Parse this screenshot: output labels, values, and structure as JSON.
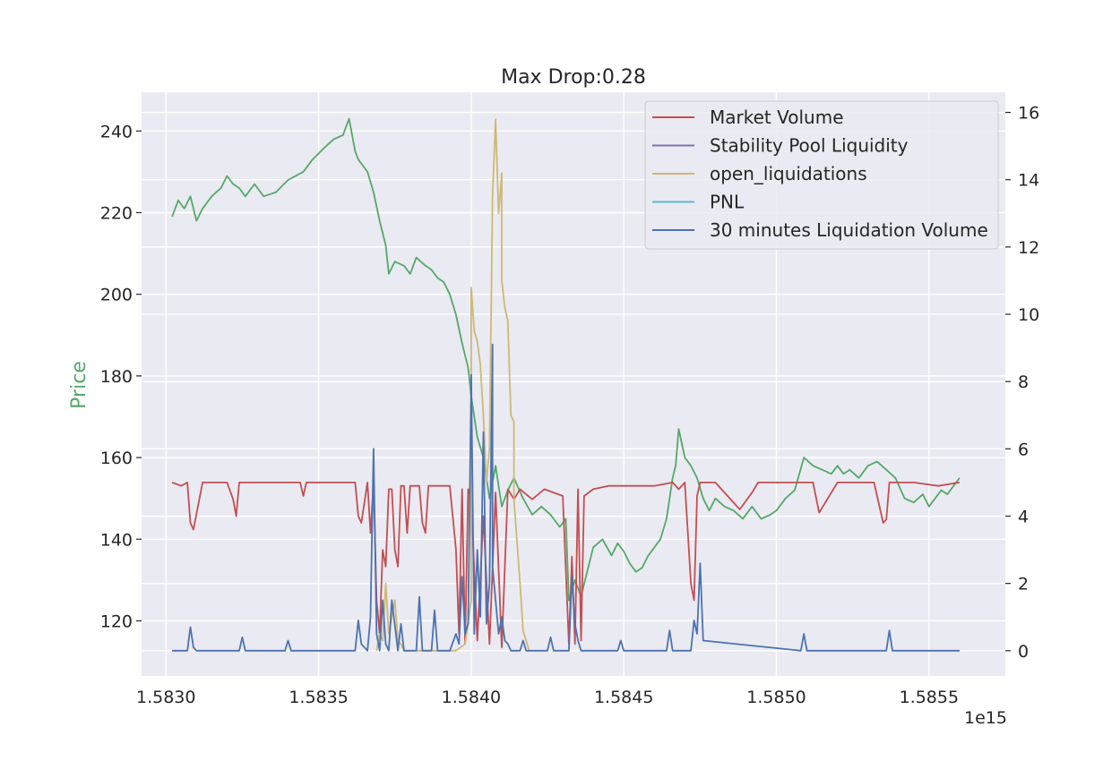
{
  "chart_data": {
    "type": "line",
    "title": "Max Drop:0.28",
    "xlabel": "",
    "ylabel": "Price",
    "x_offset_label": "1e15",
    "x_ticks": [
      "1.5830",
      "1.5835",
      "1.5840",
      "1.5845",
      "1.5850",
      "1.5855"
    ],
    "x_tick_values": [
      1.583,
      1.5835,
      1.584,
      1.5845,
      1.585,
      1.5855
    ],
    "xlim": [
      1.58292,
      1.58575
    ],
    "y_left_ticks": [
      120,
      140,
      160,
      180,
      200,
      220,
      240
    ],
    "y_left_lim": [
      106.5,
      249.5
    ],
    "y_right_ticks": [
      0,
      2,
      4,
      6,
      8,
      10,
      12,
      14,
      16
    ],
    "y_right_lim": [
      -0.75,
      16.6
    ],
    "grid": true,
    "legend_position": "upper-right",
    "colors": {
      "background": "#EAEAF2",
      "grid": "#FFFFFF",
      "price": "#55A868",
      "market_volume": "#C44E52",
      "stability_pool": "#8172B3",
      "open_liquidations": "#CCB974",
      "pnl": "#64B5CD",
      "liq_volume": "#4C72B0"
    },
    "price_series": {
      "name": "Price",
      "axis": "left",
      "x": [
        1.58302,
        1.58304,
        1.58306,
        1.58308,
        1.5831,
        1.58312,
        1.58315,
        1.58318,
        1.5832,
        1.58322,
        1.58324,
        1.58326,
        1.58329,
        1.58332,
        1.58336,
        1.5834,
        1.58345,
        1.58348,
        1.58352,
        1.58355,
        1.58358,
        1.5836,
        1.58362,
        1.58363,
        1.58366,
        1.58368,
        1.5837,
        1.58372,
        1.58373,
        1.58375,
        1.58378,
        1.5838,
        1.58382,
        1.58385,
        1.58387,
        1.58389,
        1.58391,
        1.58393,
        1.58395,
        1.58397,
        1.58399,
        1.584,
        1.58402,
        1.58404,
        1.58406,
        1.58408,
        1.5841,
        1.58412,
        1.58414,
        1.58417,
        1.5842,
        1.58423,
        1.58426,
        1.58429,
        1.58431,
        1.58432,
        1.58434,
        1.58436,
        1.58438,
        1.5844,
        1.58443,
        1.58446,
        1.58448,
        1.5845,
        1.58452,
        1.58454,
        1.58456,
        1.58458,
        1.5846,
        1.58462,
        1.58464,
        1.58465,
        1.58466,
        1.58467,
        1.58468,
        1.5847,
        1.58472,
        1.58474,
        1.58476,
        1.58478,
        1.5848,
        1.58483,
        1.58486,
        1.58489,
        1.58492,
        1.58495,
        1.58498,
        1.585,
        1.58503,
        1.58506,
        1.58509,
        1.58512,
        1.58515,
        1.58518,
        1.5852,
        1.58522,
        1.58524,
        1.58527,
        1.5853,
        1.58533,
        1.58536,
        1.58539,
        1.58542,
        1.58545,
        1.58548,
        1.5855,
        1.58552,
        1.58554,
        1.58556,
        1.58558,
        1.5856
      ],
      "values": [
        219,
        223,
        221,
        224,
        218,
        221,
        224,
        226,
        229,
        227,
        226,
        224,
        227,
        224,
        225,
        228,
        230,
        233,
        236,
        238,
        239,
        243,
        235,
        233,
        230,
        225,
        218,
        212,
        205,
        208,
        207,
        205,
        209,
        207,
        206,
        204,
        203,
        200,
        195,
        188,
        182,
        175,
        165,
        160,
        150,
        158,
        148,
        152,
        155,
        150,
        146,
        148,
        146,
        143,
        145,
        125,
        130,
        126,
        132,
        138,
        140,
        136,
        139,
        137,
        134,
        132,
        133,
        136,
        138,
        140,
        145,
        150,
        155,
        158,
        167,
        160,
        158,
        155,
        150,
        147,
        150,
        148,
        147,
        145,
        148,
        145,
        146,
        147,
        150,
        152,
        160,
        158,
        157,
        156,
        158,
        156,
        157,
        155,
        158,
        159,
        157,
        155,
        150,
        149,
        151,
        148,
        150,
        152,
        151,
        153,
        155
      ]
    },
    "series": [
      {
        "name": "Market Volume",
        "axis": "right",
        "x": [
          1.58302,
          1.58305,
          1.58307,
          1.58308,
          1.58309,
          1.58312,
          1.5832,
          1.58322,
          1.58323,
          1.58324,
          1.58332,
          1.58344,
          1.58345,
          1.58346,
          1.58362,
          1.58363,
          1.58364,
          1.58366,
          1.58367,
          1.58368,
          1.58369,
          1.5837,
          1.58371,
          1.58372,
          1.58373,
          1.58374,
          1.58375,
          1.58376,
          1.58377,
          1.58378,
          1.58379,
          1.5838,
          1.58383,
          1.58384,
          1.58385,
          1.58386,
          1.58387,
          1.58393,
          1.58395,
          1.58396,
          1.58397,
          1.58398,
          1.58399,
          1.584,
          1.58402,
          1.58404,
          1.58406,
          1.58408,
          1.5841,
          1.58412,
          1.58414,
          1.58416,
          1.5842,
          1.58424,
          1.5843,
          1.58432,
          1.58433,
          1.58434,
          1.58435,
          1.58436,
          1.58437,
          1.5844,
          1.58445,
          1.5845,
          1.58455,
          1.5846,
          1.58466,
          1.58468,
          1.5847,
          1.58472,
          1.58473,
          1.58474,
          1.58475,
          1.5848,
          1.58488,
          1.58492,
          1.58494,
          1.58496,
          1.585,
          1.58505,
          1.58512,
          1.58514,
          1.5852,
          1.58526,
          1.58532,
          1.58535,
          1.58536,
          1.58537,
          1.58545,
          1.58553,
          1.5856
        ],
        "values": [
          5,
          4.9,
          5,
          3.8,
          3.6,
          5,
          5,
          4.5,
          4,
          5,
          5,
          5,
          4.6,
          5,
          5,
          4,
          3.8,
          5,
          3.5,
          5,
          1.5,
          0.5,
          3,
          2.5,
          4.8,
          4.8,
          3,
          2.5,
          4.9,
          4.9,
          3.5,
          4.9,
          4.9,
          3.8,
          3.5,
          4.9,
          4.9,
          4.9,
          3,
          0.5,
          4.8,
          0.2,
          4.8,
          4.5,
          0.3,
          4,
          0.2,
          4.7,
          0.1,
          4.8,
          4.5,
          4.8,
          4.5,
          4.8,
          4.6,
          0.2,
          2.8,
          0.2,
          4.8,
          0.3,
          4.6,
          4.8,
          4.9,
          4.9,
          4.9,
          4.9,
          5,
          4.8,
          5,
          2,
          1.5,
          4.6,
          5,
          5,
          4.2,
          4.7,
          5,
          5,
          5,
          5,
          5,
          4.1,
          5,
          5,
          5,
          3.8,
          3.9,
          5,
          5,
          4.9,
          5
        ]
      },
      {
        "name": "Stability Pool Liquidity",
        "axis": "right",
        "x": [],
        "values": []
      },
      {
        "name": "open_liquidations",
        "axis": "right",
        "x": [
          1.58369,
          1.5837,
          1.58371,
          1.58372,
          1.58373,
          1.58375,
          1.58376,
          1.58377,
          1.58378,
          1.58395,
          1.58398,
          1.584,
          1.584,
          1.58401,
          1.58402,
          1.58403,
          1.58404,
          1.58405,
          1.58406,
          1.58407,
          1.58408,
          1.58409,
          1.5841,
          1.5841,
          1.58411,
          1.58412,
          1.58413,
          1.58414,
          1.58414,
          1.58416,
          1.58417,
          1.58418,
          1.58419
        ],
        "values": [
          0,
          0.5,
          0.3,
          2,
          0.5,
          1.5,
          0.3,
          0.2,
          0,
          0,
          0.2,
          1.5,
          10.8,
          9.5,
          9.2,
          8.5,
          7,
          5,
          6,
          13.5,
          15.8,
          13,
          14.2,
          11,
          10.2,
          9.8,
          7,
          6.8,
          4.5,
          2,
          0.6,
          0.3,
          0
        ]
      },
      {
        "name": "PNL",
        "axis": "right",
        "x": [],
        "values": []
      },
      {
        "name": "30 minutes Liquidation Volume",
        "axis": "right",
        "x": [
          1.58302,
          1.58307,
          1.58308,
          1.58309,
          1.5831,
          1.58324,
          1.58325,
          1.58326,
          1.58339,
          1.5834,
          1.58341,
          1.58362,
          1.58363,
          1.58364,
          1.58366,
          1.58367,
          1.58368,
          1.58369,
          1.5837,
          1.58371,
          1.58372,
          1.58373,
          1.58374,
          1.58376,
          1.58377,
          1.58378,
          1.58382,
          1.58383,
          1.58384,
          1.58387,
          1.58388,
          1.58389,
          1.58393,
          1.58395,
          1.58396,
          1.58397,
          1.58398,
          1.58399,
          1.584,
          1.584,
          1.58401,
          1.58402,
          1.58403,
          1.58404,
          1.58405,
          1.58406,
          1.58407,
          1.58407,
          1.58408,
          1.58409,
          1.5841,
          1.58411,
          1.58412,
          1.58413,
          1.58416,
          1.58417,
          1.58418,
          1.58425,
          1.58426,
          1.58427,
          1.58432,
          1.58433,
          1.58434,
          1.58435,
          1.58436,
          1.58437,
          1.58448,
          1.58449,
          1.5845,
          1.58464,
          1.58465,
          1.58466,
          1.58472,
          1.58473,
          1.58474,
          1.58475,
          1.58476,
          1.58508,
          1.58509,
          1.5851,
          1.58536,
          1.58537,
          1.58538,
          1.5856
        ],
        "values": [
          0,
          0,
          0.7,
          0.1,
          0,
          0,
          0.4,
          0,
          0,
          0.3,
          0,
          0,
          0.9,
          0.2,
          0,
          1,
          6,
          0.5,
          0,
          1.5,
          0.2,
          0,
          1.5,
          0,
          0.8,
          0,
          0,
          1.6,
          0,
          0,
          1.2,
          0,
          0,
          0.5,
          0.2,
          2.2,
          0.5,
          0.8,
          8,
          8.2,
          0.5,
          3,
          1,
          6.5,
          0.8,
          2,
          9.1,
          2.5,
          1.5,
          0.5,
          1,
          0.3,
          0.2,
          0,
          0,
          0.3,
          0,
          0,
          0.4,
          0,
          0,
          2.2,
          0.8,
          0.3,
          0,
          0,
          0,
          0.3,
          0,
          0,
          0.6,
          0,
          0,
          0.9,
          0.5,
          2.6,
          0.3,
          0,
          0.5,
          0,
          0,
          0.6,
          0,
          0
        ]
      }
    ]
  }
}
